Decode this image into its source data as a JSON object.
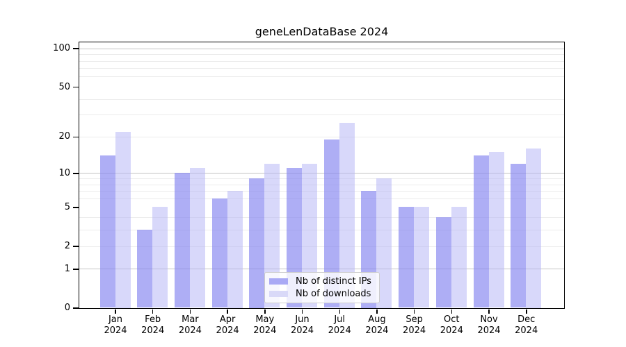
{
  "chart_data": {
    "type": "bar",
    "title": "geneLenDataBase 2024",
    "xlabel": "",
    "ylabel": "",
    "x_axis": {
      "categories": [
        "Jan",
        "Feb",
        "Mar",
        "Apr",
        "May",
        "Jun",
        "Jul",
        "Aug",
        "Sep",
        "Oct",
        "Nov",
        "Dec"
      ],
      "year_line": "2024"
    },
    "y_axis": {
      "scale": "log10(value+1)",
      "ticks": [
        0,
        1,
        2,
        5,
        10,
        20,
        50,
        100
      ],
      "lim": [
        0,
        112
      ],
      "grid_major": [
        1,
        10,
        100
      ],
      "grid_minor": [
        2,
        3,
        4,
        6,
        7,
        8,
        9,
        20,
        30,
        40,
        60,
        70,
        80,
        90
      ]
    },
    "series": [
      {
        "name": "Nb of distinct IPs",
        "values": [
          14,
          3,
          10,
          6,
          9,
          11,
          19,
          7,
          5,
          4,
          14,
          12
        ],
        "bar_color": "rgba(132,132,240,0.66)",
        "legend_color": "#a9a9f5"
      },
      {
        "name": "Nb of downloads",
        "values": [
          22,
          5,
          11,
          7,
          12,
          12,
          26,
          9,
          5,
          5,
          15,
          16
        ],
        "bar_color": "rgba(180,180,245,0.52)",
        "legend_color": "#d9d9f8"
      }
    ],
    "legend": {
      "position": "lower center",
      "labels": [
        "Nb of distinct IPs",
        "Nb of downloads"
      ]
    },
    "grid": true,
    "colors": {
      "grid_major": "#c3c3c3",
      "grid_minor": "#ebebeb",
      "spine": "#000000",
      "text": "#000000",
      "background": "#ffffff"
    }
  }
}
